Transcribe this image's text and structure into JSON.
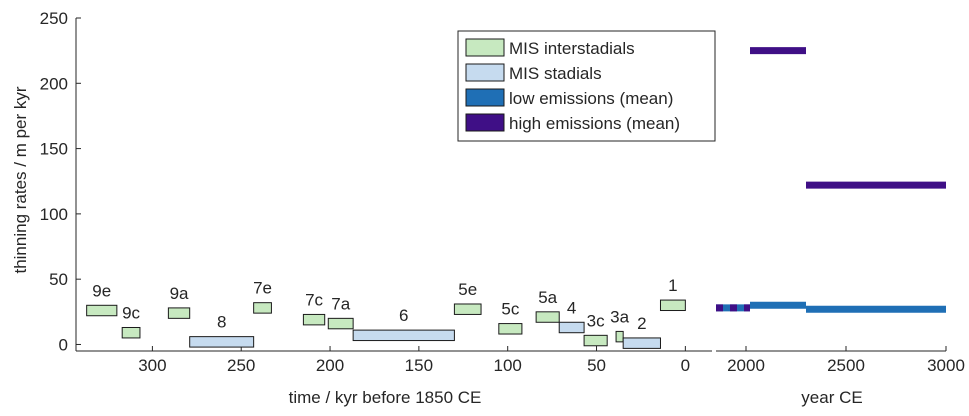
{
  "chart_data": {
    "type": "bar",
    "ylabel": "thinning rates / m per kyr",
    "ylim": [
      -5,
      250
    ],
    "yticks": [
      "0",
      "50",
      "100",
      "150",
      "200",
      "250"
    ],
    "panels": [
      {
        "name": "MIS",
        "xlabel": "time / kyr before 1850 CE",
        "xlim": [
          343,
          -15
        ],
        "xticks": [
          "300",
          "250",
          "200",
          "150",
          "100",
          "50",
          "0"
        ],
        "intervals": [
          {
            "label": "9e",
            "kind": "interstadial",
            "x0": 337,
            "x1": 320,
            "y0": 22,
            "y1": 30
          },
          {
            "label": "9c",
            "kind": "interstadial",
            "x0": 317,
            "x1": 307,
            "y0": 5,
            "y1": 13
          },
          {
            "label": "9a",
            "kind": "interstadial",
            "x0": 291,
            "x1": 279,
            "y0": 20,
            "y1": 28
          },
          {
            "label": "8",
            "kind": "stadial",
            "x0": 279,
            "x1": 243,
            "y0": -2,
            "y1": 6
          },
          {
            "label": "7e",
            "kind": "interstadial",
            "x0": 243,
            "x1": 233,
            "y0": 24,
            "y1": 32
          },
          {
            "label": "7c",
            "kind": "interstadial",
            "x0": 215,
            "x1": 203,
            "y0": 15,
            "y1": 23
          },
          {
            "label": "7a",
            "kind": "interstadial",
            "x0": 201,
            "x1": 187,
            "y0": 12,
            "y1": 20
          },
          {
            "label": "6",
            "kind": "stadial",
            "x0": 187,
            "x1": 130,
            "y0": 3,
            "y1": 11
          },
          {
            "label": "5e",
            "kind": "interstadial",
            "x0": 130,
            "x1": 115,
            "y0": 23,
            "y1": 31
          },
          {
            "label": "5c",
            "kind": "interstadial",
            "x0": 105,
            "x1": 92,
            "y0": 8,
            "y1": 16
          },
          {
            "label": "5a",
            "kind": "interstadial",
            "x0": 84,
            "x1": 71,
            "y0": 17,
            "y1": 25
          },
          {
            "label": "4",
            "kind": "stadial",
            "x0": 71,
            "x1": 57,
            "y0": 9,
            "y1": 17
          },
          {
            "label": "3c",
            "kind": "interstadial",
            "x0": 57,
            "x1": 44,
            "y0": -1,
            "y1": 7
          },
          {
            "label": "3a",
            "kind": "interstadial",
            "x0": 39,
            "x1": 35,
            "y0": 2,
            "y1": 10
          },
          {
            "label": "2",
            "kind": "stadial",
            "x0": 35,
            "x1": 14,
            "y0": -3,
            "y1": 5
          },
          {
            "label": "1",
            "kind": "interstadial",
            "x0": 14,
            "x1": 0,
            "y0": 26,
            "y1": 34
          }
        ]
      },
      {
        "name": "future",
        "xlabel": "year CE",
        "xlim": [
          1850,
          3000
        ],
        "xticks": [
          "2000",
          "2500",
          "3000"
        ],
        "series": [
          {
            "name": "low emissions (mean)",
            "color": "#1f6fb5",
            "segments": [
              [
                1850,
                2020,
                28
              ],
              [
                2020,
                2300,
                30
              ],
              [
                2300,
                3000,
                27
              ]
            ]
          },
          {
            "name": "high emissions (mean)",
            "color": "#3f0f86",
            "segments": [
              [
                2020,
                2300,
                225
              ],
              [
                2300,
                3000,
                122
              ]
            ]
          }
        ],
        "overlay": {
          "series": "high emissions (mean)",
          "x0": 1850,
          "x1": 2020,
          "y": 28,
          "dashed": true
        }
      }
    ],
    "legend": {
      "placement": "top",
      "entries": [
        {
          "label": "MIS interstadials",
          "color": "#c7e9c0"
        },
        {
          "label": "MIS stadials",
          "color": "#c6dbef"
        },
        {
          "label": "low emissions (mean)",
          "color": "#1f6fb5"
        },
        {
          "label": "high emissions (mean)",
          "color": "#3f0f86"
        }
      ]
    }
  }
}
